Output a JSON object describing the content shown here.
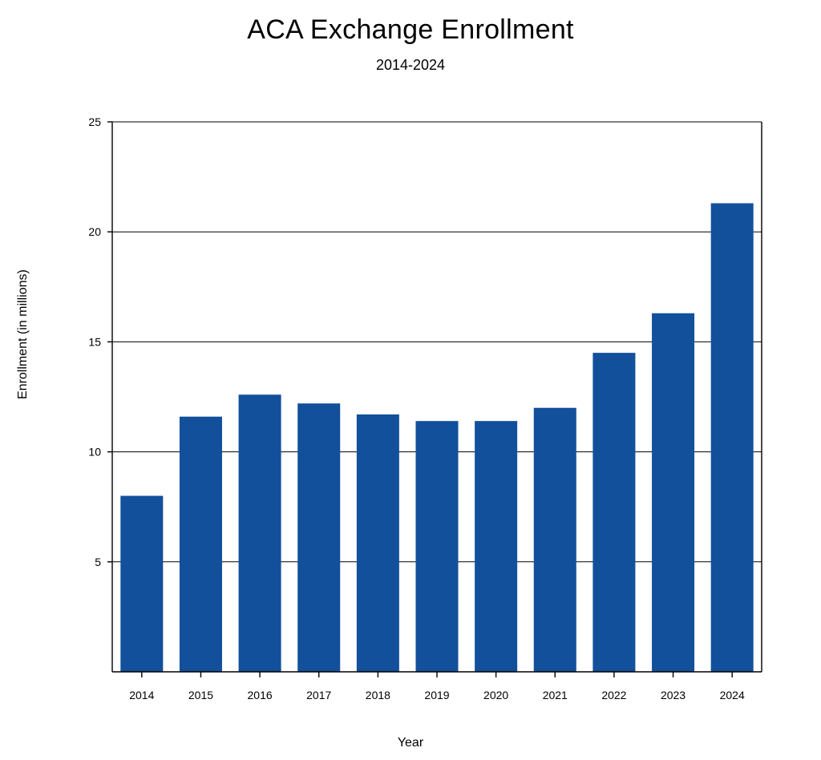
{
  "chart": {
    "type": "bar",
    "title": "ACA Exchange Enrollment",
    "subtitle": "2014-2024",
    "xlabel": "Year",
    "ylabel": "Enrollment (in millions)",
    "categories": [
      "2014",
      "2015",
      "2016",
      "2017",
      "2018",
      "2019",
      "2020",
      "2021",
      "2022",
      "2023",
      "2024"
    ],
    "values": [
      8.0,
      11.6,
      12.6,
      12.2,
      11.7,
      11.4,
      11.4,
      12.0,
      14.5,
      16.3,
      21.3
    ],
    "bar_color": "#12509b",
    "ylim": [
      0,
      25
    ],
    "ytick_step": 5,
    "yticks": [
      "5",
      "10",
      "15",
      "20",
      "25"
    ],
    "grid_color": "#000000",
    "grid_width": 1,
    "axis_color": "#000000",
    "axis_width": 1.4,
    "background_color": "#ffffff",
    "tick_fontsize": 14,
    "title_fontsize": 34,
    "subtitle_fontsize": 18,
    "label_fontsize": 16,
    "bar_width_ratio": 0.72
  }
}
